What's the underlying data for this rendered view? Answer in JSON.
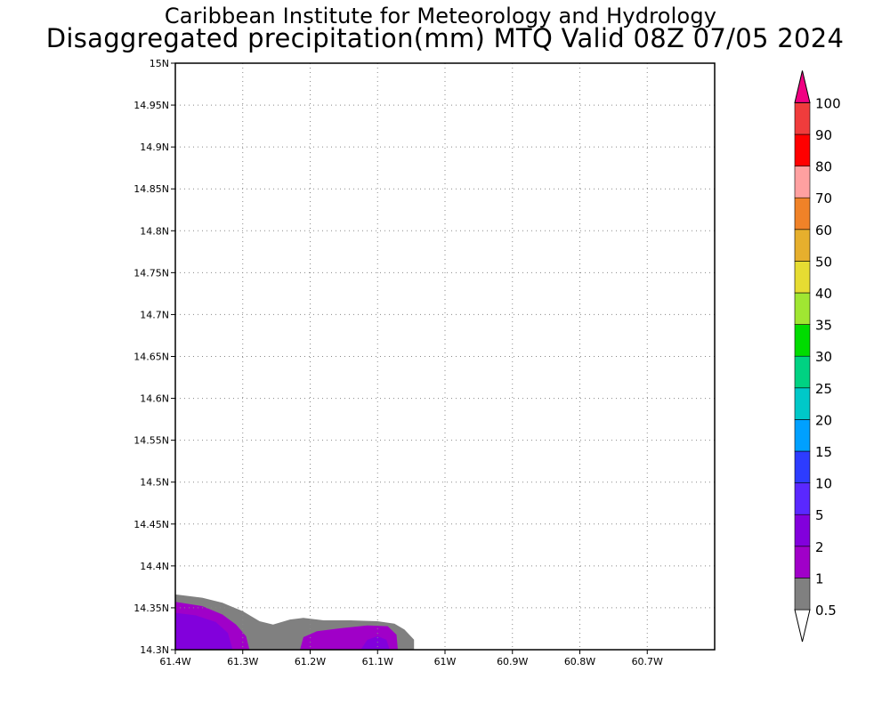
{
  "title": {
    "line1": "Caribbean Institute for Meteorology and Hydrology",
    "line2": "Disaggregated precipitation(mm) MTQ Valid 08Z 07/05 2024"
  },
  "map": {
    "lon_range": [
      -61.4,
      -60.6
    ],
    "lat_range": [
      14.3,
      15.0
    ],
    "grid": "dotted",
    "lat_ticks": [
      {
        "value": 15.0,
        "label": "15N"
      },
      {
        "value": 14.95,
        "label": "14.95N"
      },
      {
        "value": 14.9,
        "label": "14.9N"
      },
      {
        "value": 14.85,
        "label": "14.85N"
      },
      {
        "value": 14.8,
        "label": "14.8N"
      },
      {
        "value": 14.75,
        "label": "14.75N"
      },
      {
        "value": 14.7,
        "label": "14.7N"
      },
      {
        "value": 14.65,
        "label": "14.65N"
      },
      {
        "value": 14.6,
        "label": "14.6N"
      },
      {
        "value": 14.55,
        "label": "14.55N"
      },
      {
        "value": 14.5,
        "label": "14.5N"
      },
      {
        "value": 14.45,
        "label": "14.45N"
      },
      {
        "value": 14.4,
        "label": "14.4N"
      },
      {
        "value": 14.35,
        "label": "14.35N"
      },
      {
        "value": 14.3,
        "label": "14.3N"
      }
    ],
    "lon_ticks": [
      {
        "value": -61.4,
        "label": "61.4W"
      },
      {
        "value": -61.3,
        "label": "61.3W"
      },
      {
        "value": -61.2,
        "label": "61.2W"
      },
      {
        "value": -61.1,
        "label": "61.1W"
      },
      {
        "value": -61.0,
        "label": "61W"
      },
      {
        "value": -60.9,
        "label": "60.9W"
      },
      {
        "value": -60.8,
        "label": "60.8W"
      },
      {
        "value": -60.7,
        "label": "60.7W"
      }
    ],
    "precip_regions": [
      {
        "level": "0.5-1",
        "color": "#808080",
        "points": [
          [
            -61.4,
            14.366
          ],
          [
            -61.36,
            14.362
          ],
          [
            -61.33,
            14.356
          ],
          [
            -61.3,
            14.346
          ],
          [
            -61.275,
            14.334
          ],
          [
            -61.255,
            14.33
          ],
          [
            -61.23,
            14.336
          ],
          [
            -61.21,
            14.338
          ],
          [
            -61.18,
            14.335
          ],
          [
            -61.14,
            14.335
          ],
          [
            -61.1,
            14.334
          ],
          [
            -61.075,
            14.331
          ],
          [
            -61.06,
            14.324
          ],
          [
            -61.046,
            14.312
          ],
          [
            -61.046,
            14.3
          ],
          [
            -61.4,
            14.3
          ]
        ]
      },
      {
        "level": "1-2",
        "color": "#a000c8",
        "points": [
          [
            -61.4,
            14.357
          ],
          [
            -61.36,
            14.352
          ],
          [
            -61.33,
            14.342
          ],
          [
            -61.31,
            14.33
          ],
          [
            -61.295,
            14.316
          ],
          [
            -61.29,
            14.3
          ],
          [
            -61.4,
            14.3
          ]
        ]
      },
      {
        "level": "1-2",
        "color": "#a000c8",
        "points": [
          [
            -61.215,
            14.3
          ],
          [
            -61.21,
            14.315
          ],
          [
            -61.19,
            14.322
          ],
          [
            -61.15,
            14.326
          ],
          [
            -61.115,
            14.329
          ],
          [
            -61.085,
            14.328
          ],
          [
            -61.072,
            14.318
          ],
          [
            -61.07,
            14.3
          ]
        ]
      },
      {
        "level": "2-5",
        "color": "#8200dc",
        "points": [
          [
            -61.4,
            14.344
          ],
          [
            -61.37,
            14.341
          ],
          [
            -61.34,
            14.333
          ],
          [
            -61.322,
            14.32
          ],
          [
            -61.315,
            14.3
          ],
          [
            -61.4,
            14.3
          ]
        ]
      },
      {
        "level": "2-5",
        "color": "#8200dc",
        "points": [
          [
            -61.125,
            14.3
          ],
          [
            -61.115,
            14.312
          ],
          [
            -61.1,
            14.316
          ],
          [
            -61.087,
            14.312
          ],
          [
            -61.082,
            14.3
          ]
        ]
      }
    ]
  },
  "colorbar": {
    "under_color": "#ffffff",
    "over_color": "#f00082",
    "levels": [
      {
        "label": "0.5",
        "color": "#808080"
      },
      {
        "label": "1",
        "color": "#a000c8"
      },
      {
        "label": "2",
        "color": "#8200dc"
      },
      {
        "label": "5",
        "color": "#5a28ff"
      },
      {
        "label": "10",
        "color": "#2d3cff"
      },
      {
        "label": "15",
        "color": "#00a0ff"
      },
      {
        "label": "20",
        "color": "#00c8c8"
      },
      {
        "label": "25",
        "color": "#00d282"
      },
      {
        "label": "30",
        "color": "#00dc00"
      },
      {
        "label": "35",
        "color": "#a0e632"
      },
      {
        "label": "40",
        "color": "#e6dc32"
      },
      {
        "label": "50",
        "color": "#e6af2d"
      },
      {
        "label": "60",
        "color": "#f08228"
      },
      {
        "label": "70",
        "color": "#ffa0a0"
      },
      {
        "label": "80",
        "color": "#ff0000"
      },
      {
        "label": "90",
        "color": "#f03c3c"
      },
      {
        "label": "100",
        "color": ""
      }
    ]
  }
}
